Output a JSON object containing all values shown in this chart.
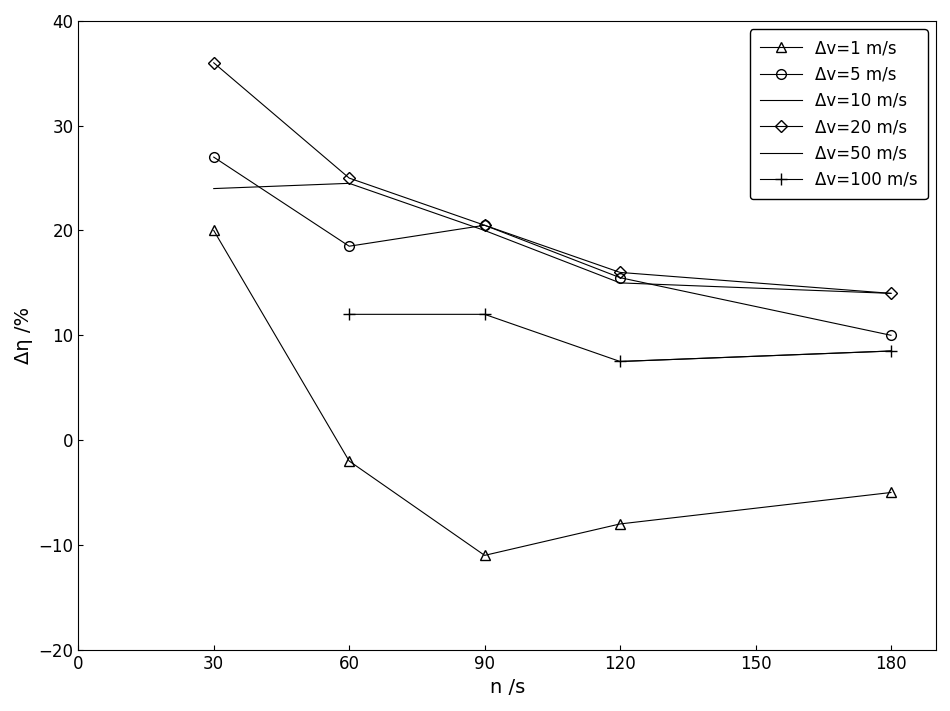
{
  "x": [
    30,
    60,
    90,
    120,
    180
  ],
  "series": [
    {
      "label": "Δv=1 m/s",
      "y": [
        20,
        -2,
        -11,
        -8,
        -5
      ],
      "marker": "^",
      "markersize": 7,
      "color": "#000000",
      "linewidth": 0.8,
      "linestyle": "-",
      "markerfacecolor": "none"
    },
    {
      "label": "Δv=5 m/s",
      "y": [
        27,
        18.5,
        20.5,
        15.5,
        10
      ],
      "marker": "o",
      "markersize": 7,
      "color": "#000000",
      "linewidth": 0.8,
      "linestyle": "-",
      "markerfacecolor": "none"
    },
    {
      "label": "Δv=10 m/s",
      "y": [
        24,
        24.5,
        20,
        15,
        14
      ],
      "marker": "None",
      "markersize": 0,
      "color": "#000000",
      "linewidth": 0.8,
      "linestyle": "-",
      "markerfacecolor": "none"
    },
    {
      "label": "Δv=20 m/s",
      "y": [
        36,
        25,
        20.5,
        16,
        14
      ],
      "marker": "D",
      "markersize": 6,
      "color": "#000000",
      "linewidth": 0.8,
      "linestyle": "-",
      "markerfacecolor": "none"
    },
    {
      "label": "Δv=50 m/s",
      "y": [
        null,
        null,
        null,
        7.5,
        8.5
      ],
      "marker": "None",
      "markersize": 0,
      "color": "#000000",
      "linewidth": 0.8,
      "linestyle": "-",
      "markerfacecolor": "none"
    },
    {
      "label": "Δv=100 m/s",
      "y": [
        null,
        12,
        12,
        7.5,
        8.5
      ],
      "marker": "+",
      "markersize": 8,
      "color": "#000000",
      "linewidth": 0.8,
      "linestyle": "-",
      "markerfacecolor": "#000000"
    }
  ],
  "xlabel": "n /s",
  "ylabel": "Δη /%",
  "xlim": [
    0,
    190
  ],
  "ylim": [
    -20,
    40
  ],
  "xticks": [
    0,
    30,
    60,
    90,
    120,
    150,
    180
  ],
  "yticks": [
    -20,
    -10,
    0,
    10,
    20,
    30,
    40
  ],
  "background_color": "#ffffff",
  "legend_fontsize": 12,
  "axis_fontsize": 14,
  "tick_fontsize": 12,
  "figsize": [
    9.5,
    7.11
  ],
  "dpi": 100
}
